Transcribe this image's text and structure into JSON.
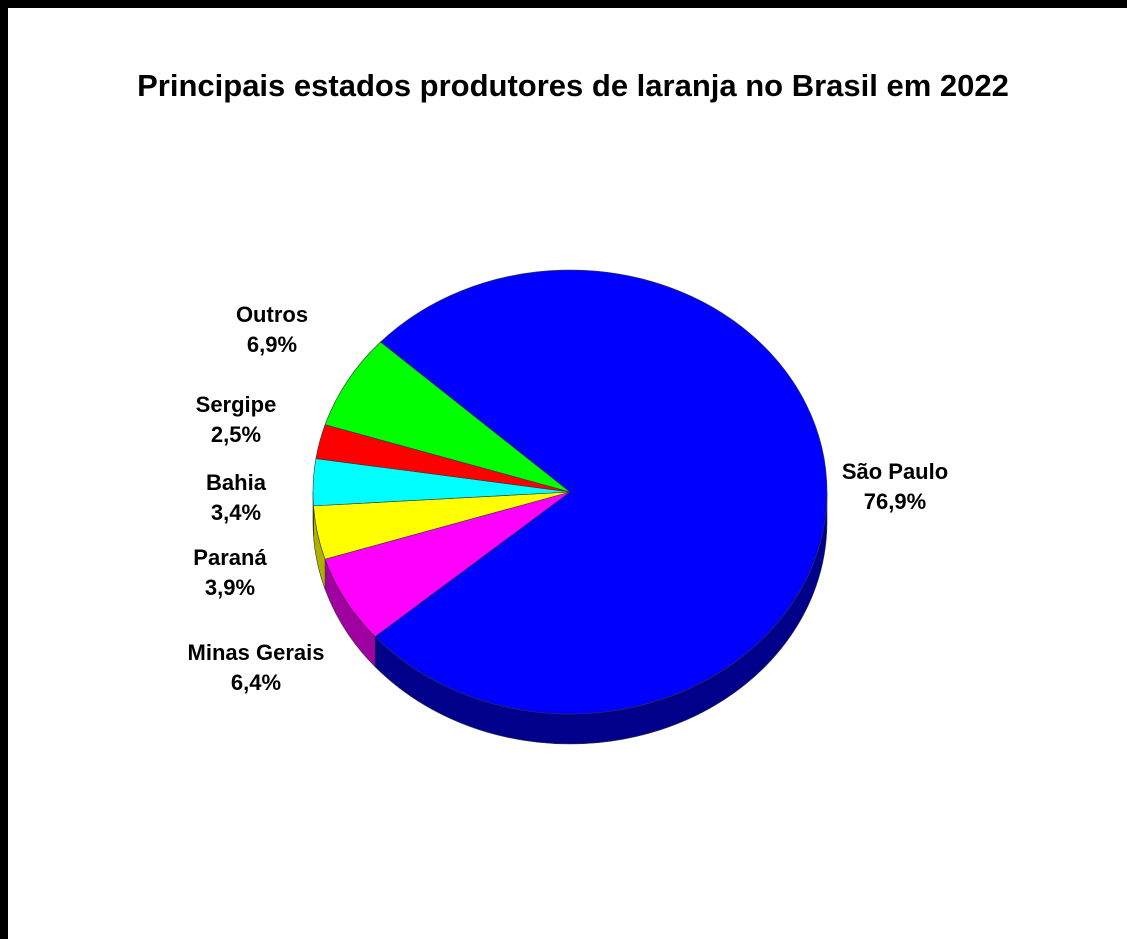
{
  "chart_data": {
    "type": "pie",
    "title": "Principais estados produtores de laranja no Brasil em 2022",
    "slices": [
      {
        "name": "São Paulo",
        "label": "76,9%",
        "value": 76.9,
        "color": "#0000FF",
        "side_color": "#00008B"
      },
      {
        "name": "Minas Gerais",
        "label": "6,4%",
        "value": 6.4,
        "color": "#FF00FF",
        "side_color": "#A000A0"
      },
      {
        "name": "Paraná",
        "label": "3,9%",
        "value": 3.9,
        "color": "#FFFF00",
        "side_color": "#B0B000"
      },
      {
        "name": "Bahia",
        "label": "3,4%",
        "value": 3.4,
        "color": "#00FFFF",
        "side_color": "#00A0A0"
      },
      {
        "name": "Sergipe",
        "label": "2,5%",
        "value": 2.5,
        "color": "#FF0000",
        "side_color": "#A00000"
      },
      {
        "name": "Outros",
        "label": "6,9%",
        "value": 6.9,
        "color": "#00FF00",
        "side_color": "#00A000"
      }
    ]
  }
}
